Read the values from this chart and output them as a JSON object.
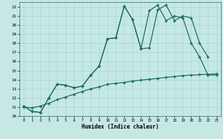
{
  "xlabel": "Humidex (Indice chaleur)",
  "bg_color": "#c5e8e5",
  "grid_color": "#a8d5d0",
  "line_color": "#1a6b5a",
  "xlim": [
    -0.5,
    23.5
  ],
  "ylim": [
    10,
    22.5
  ],
  "xticks": [
    0,
    1,
    2,
    3,
    4,
    5,
    6,
    7,
    8,
    9,
    10,
    11,
    12,
    13,
    14,
    15,
    16,
    17,
    18,
    19,
    20,
    21,
    22,
    23
  ],
  "yticks": [
    10,
    11,
    12,
    13,
    14,
    15,
    16,
    17,
    18,
    19,
    20,
    21,
    22
  ],
  "line1_x": [
    0,
    1,
    2,
    3,
    4,
    5,
    6,
    7,
    8,
    9,
    10,
    11,
    12,
    13,
    14,
    15,
    16,
    17,
    18,
    19,
    20,
    21,
    22
  ],
  "line1_y": [
    11.1,
    10.5,
    10.4,
    12.0,
    13.5,
    13.4,
    13.1,
    13.3,
    14.5,
    15.5,
    18.5,
    18.6,
    22.1,
    20.6,
    17.4,
    17.5,
    21.7,
    22.2,
    20.5,
    21.0,
    20.8,
    18.0,
    16.5
  ],
  "line2_x": [
    0,
    1,
    2,
    3,
    4,
    5,
    6,
    7,
    8,
    9,
    10,
    11,
    12,
    13,
    14,
    15,
    16,
    17,
    18,
    19,
    20,
    21,
    22,
    23
  ],
  "line2_y": [
    11.1,
    10.5,
    10.4,
    12.0,
    13.5,
    13.4,
    13.1,
    13.3,
    14.5,
    15.5,
    18.5,
    18.6,
    22.1,
    20.6,
    17.4,
    21.6,
    22.2,
    20.5,
    21.0,
    20.8,
    18.0,
    16.5,
    14.5,
    14.5
  ],
  "line3_x": [
    0,
    1,
    2,
    3,
    4,
    5,
    6,
    7,
    8,
    9,
    10,
    11,
    12,
    13,
    14,
    15,
    16,
    17,
    18,
    19,
    20,
    21,
    22,
    23
  ],
  "line3_y": [
    11.0,
    10.9,
    11.1,
    11.4,
    11.8,
    12.1,
    12.4,
    12.7,
    13.0,
    13.2,
    13.5,
    13.6,
    13.7,
    13.85,
    13.95,
    14.05,
    14.15,
    14.25,
    14.35,
    14.45,
    14.5,
    14.55,
    14.6,
    14.65
  ],
  "linewidth": 0.9,
  "markersize": 3,
  "marker": "+"
}
